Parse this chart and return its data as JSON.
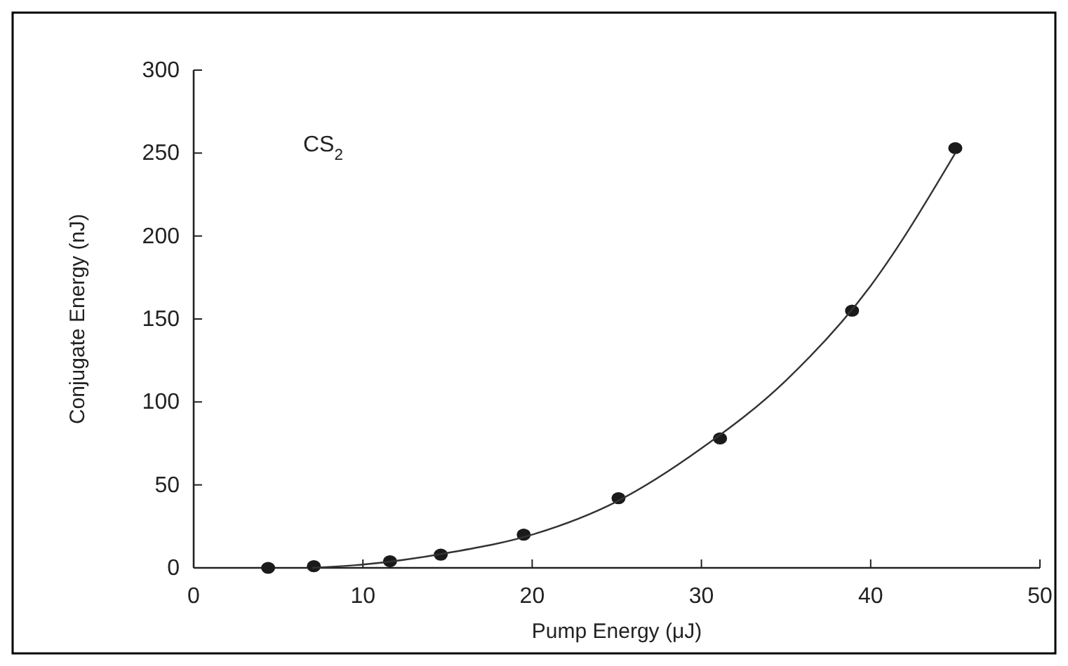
{
  "chart_data": {
    "type": "scatter",
    "xlabel": "Pump Energy (μJ)",
    "ylabel": "Conjugate Energy (nJ)",
    "annotations": [
      "CS$_{2}$"
    ],
    "xlim": [
      0,
      50
    ],
    "xticks": [
      0,
      10,
      20,
      30,
      40,
      50
    ],
    "ylim": [
      0,
      300
    ],
    "yticks": [
      0,
      50,
      100,
      150,
      200,
      250,
      300
    ],
    "grid": false,
    "series": [
      {
        "color": "#1a1a1a",
        "marker": "circle",
        "x": [
          4.4,
          7.1,
          11.6,
          14.6,
          19.5,
          25.1,
          31.1,
          38.9,
          45
        ],
        "values": [
          0,
          1,
          4,
          8,
          20,
          42,
          78,
          155,
          253
        ]
      },
      {
        "type": "line",
        "color": "#333333",
        "marker": "none",
        "line_style": "solid",
        "x": [
          7,
          10,
          15,
          20,
          25,
          30,
          35,
          40,
          45
        ],
        "values": [
          0,
          2,
          9,
          20,
          40,
          72,
          113,
          170,
          250
        ]
      }
    ]
  }
}
